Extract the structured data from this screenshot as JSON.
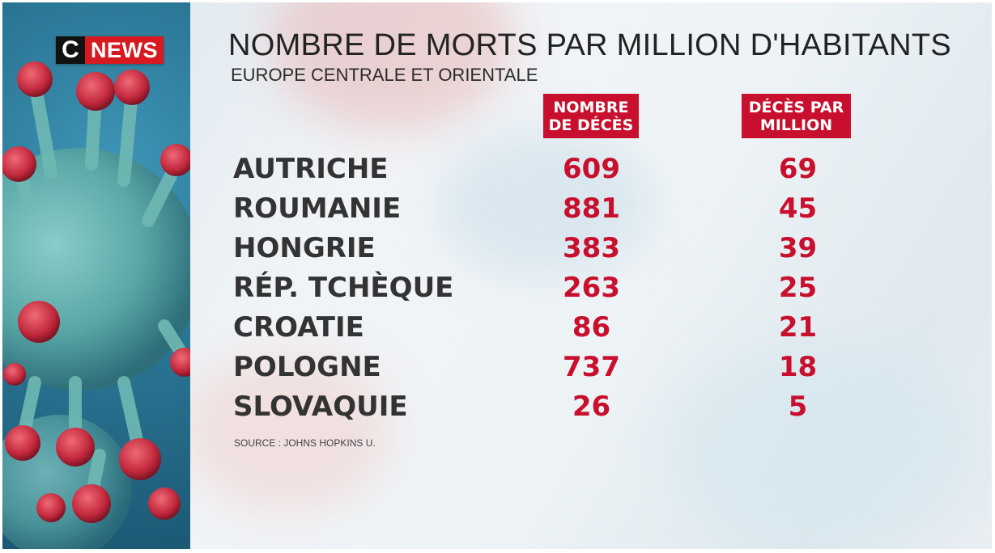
{
  "brand": {
    "c": "C",
    "news": "NEWS"
  },
  "title": "NOMBRE DE MORTS PAR MILLION D'HABITANTS",
  "subtitle": "EUROPE CENTRALE ET ORIENTALE",
  "columns": {
    "deaths": "NOMBRE\nDE DÉCÈS",
    "per_million": "DÉCÈS PAR\nMILLION"
  },
  "rows": [
    {
      "country": "AUTRICHE",
      "deaths": "609",
      "per_million": "69"
    },
    {
      "country": "ROUMANIE",
      "deaths": "881",
      "per_million": "45"
    },
    {
      "country": "HONGRIE",
      "deaths": "383",
      "per_million": "39"
    },
    {
      "country": "RÉP. TCHÈQUE",
      "deaths": "263",
      "per_million": "25"
    },
    {
      "country": "CROATIE",
      "deaths": "86",
      "per_million": "21"
    },
    {
      "country": "POLOGNE",
      "deaths": "737",
      "per_million": "18"
    },
    {
      "country": "SLOVAQUIE",
      "deaths": "26",
      "per_million": "5"
    }
  ],
  "source": "SOURCE  : JOHNS HOPKINS U.",
  "colors": {
    "accent": "#c8102e",
    "text": "#333333"
  }
}
